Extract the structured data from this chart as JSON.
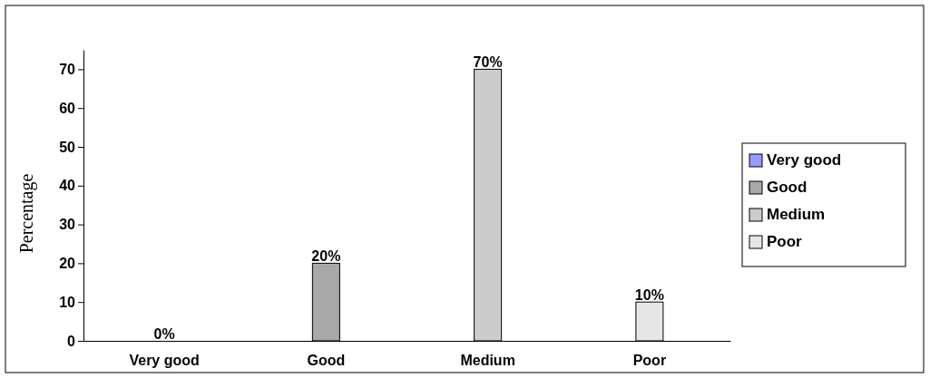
{
  "chart_data": {
    "type": "bar",
    "categories": [
      "Very good",
      "Good",
      "Medium",
      "Poor"
    ],
    "series": [
      {
        "name": "Very good",
        "color": "#9999ff",
        "values": [
          0,
          null,
          null,
          null
        ],
        "value_labels": [
          "0%",
          null,
          null,
          null
        ]
      },
      {
        "name": "Good",
        "color": "#a8a8a8",
        "values": [
          null,
          20,
          null,
          null
        ],
        "value_labels": [
          null,
          "20%",
          null,
          null
        ]
      },
      {
        "name": "Medium",
        "color": "#cccccc",
        "values": [
          null,
          null,
          70,
          null
        ],
        "value_labels": [
          null,
          null,
          "70%",
          null
        ]
      },
      {
        "name": "Poor",
        "color": "#e6e6e6",
        "values": [
          null,
          null,
          null,
          10
        ],
        "value_labels": [
          null,
          null,
          null,
          "10%"
        ]
      }
    ],
    "ylabel": "Percentage",
    "ylim": [
      0,
      75
    ],
    "yticks": [
      0,
      10,
      20,
      30,
      40,
      50,
      60,
      70
    ],
    "grid": false,
    "legend": "right"
  }
}
